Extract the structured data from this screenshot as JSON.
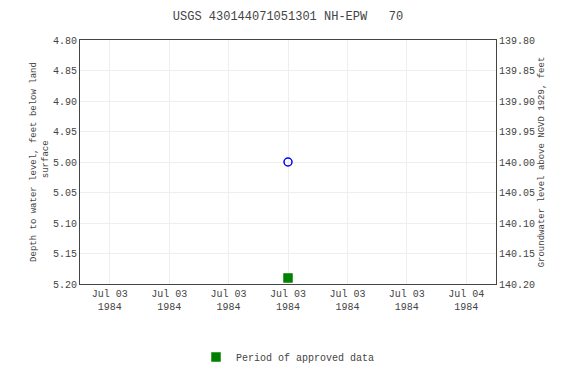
{
  "chart_data": {
    "type": "scatter",
    "title": "USGS 430144071051301 NH-EPW   70",
    "ylabel": "Depth to water level, feet below land\n surface",
    "y2label": "Groundwater level above NGVD 1929, feet",
    "categories": [
      "Jul 03\n1984",
      "Jul 03\n1984",
      "Jul 03\n1984",
      "Jul 03\n1984",
      "Jul 03\n1984",
      "Jul 03\n1984",
      "Jul 04\n1984"
    ],
    "series": [
      {
        "values": [
          null,
          null,
          null,
          5.0,
          null,
          null,
          null
        ],
        "color": "blue",
        "marker": "circle-open"
      },
      {
        "name": "Period of approved data",
        "values": [
          null,
          null,
          null,
          5.19,
          null,
          null,
          null
        ],
        "color": "green",
        "marker": "square"
      }
    ],
    "ylim": [
      5.2,
      4.8
    ],
    "yticks": [
      {
        "value": 4.8,
        "label": "4.80"
      },
      4.85,
      {
        "value": 4.9,
        "label": "4.90"
      },
      4.95,
      {
        "value": 5.0,
        "label": "5.00"
      },
      5.05,
      {
        "value": 5.1,
        "label": "5.10"
      },
      5.15,
      {
        "value": 5.2,
        "label": "5.20"
      }
    ],
    "y2lim": [
      140.2,
      139.8
    ],
    "y2ticks": [
      {
        "value": 140.2,
        "label": "140.20"
      },
      140.15,
      {
        "value": 140.1,
        "label": "140.10"
      },
      140.05,
      {
        "value": 140.0,
        "label": "140.00"
      },
      139.95,
      {
        "value": 139.9,
        "label": "139.90"
      },
      139.85,
      {
        "value": 139.8,
        "label": "139.80"
      }
    ],
    "grid": true,
    "legend": "bottom"
  }
}
